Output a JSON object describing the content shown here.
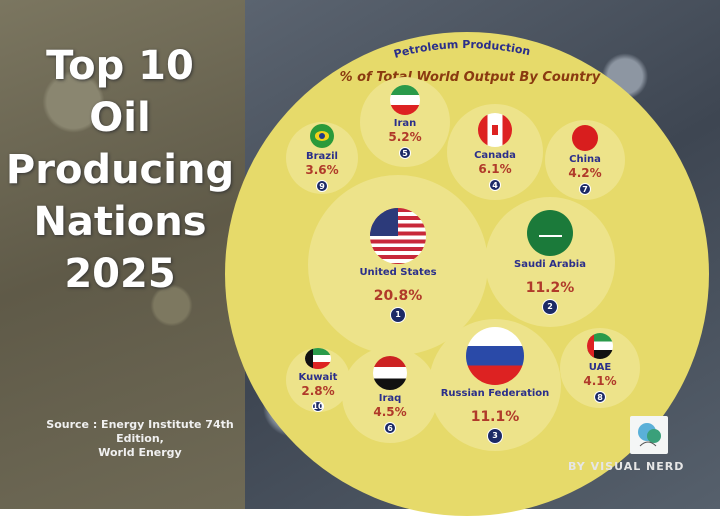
{
  "title": {
    "lines": [
      "Top 10",
      "Oil",
      "Producing",
      "Nations",
      "2025"
    ]
  },
  "source": {
    "line1": "Source :  Energy Institute 74th",
    "line2": "Edition,",
    "line3": "World Energy"
  },
  "credit": "BY VISUAL NERD",
  "colors": {
    "circle": "#e6da6a",
    "bubble": "#ede38a",
    "name": "#2b2f8a",
    "percent": "#b03a2a",
    "rank": "#1c2a66"
  },
  "chart_data": {
    "type": "bubble",
    "title": "Petroleum Production",
    "subtitle": "% of Total World Output By Country",
    "items": [
      {
        "country": "United States",
        "percent": "20.8%",
        "value": 20.8,
        "rank": "1",
        "flag": "us-flag"
      },
      {
        "country": "Saudi Arabia",
        "percent": "11.2%",
        "value": 11.2,
        "rank": "2",
        "flag": "saudi-flag"
      },
      {
        "country": "Russian Federation",
        "percent": "11.1%",
        "value": 11.1,
        "rank": "3",
        "flag": "russia-flag"
      },
      {
        "country": "Canada",
        "percent": "6.1%",
        "value": 6.1,
        "rank": "4",
        "flag": "canada-flag"
      },
      {
        "country": "Iran",
        "percent": "5.2%",
        "value": 5.2,
        "rank": "5",
        "flag": "iran-flag"
      },
      {
        "country": "Iraq",
        "percent": "4.5%",
        "value": 4.5,
        "rank": "6",
        "flag": "iraq-flag"
      },
      {
        "country": "China",
        "percent": "4.2%",
        "value": 4.2,
        "rank": "7",
        "flag": "china-flag"
      },
      {
        "country": "UAE",
        "percent": "4.1%",
        "value": 4.1,
        "rank": "8",
        "flag": "uae-flag"
      },
      {
        "country": "Brazil",
        "percent": "3.6%",
        "value": 3.6,
        "rank": "9",
        "flag": "brazil-flag"
      },
      {
        "country": "Kuwait",
        "percent": "2.8%",
        "value": 2.8,
        "rank": "10",
        "flag": "kuwait-flag"
      }
    ]
  }
}
